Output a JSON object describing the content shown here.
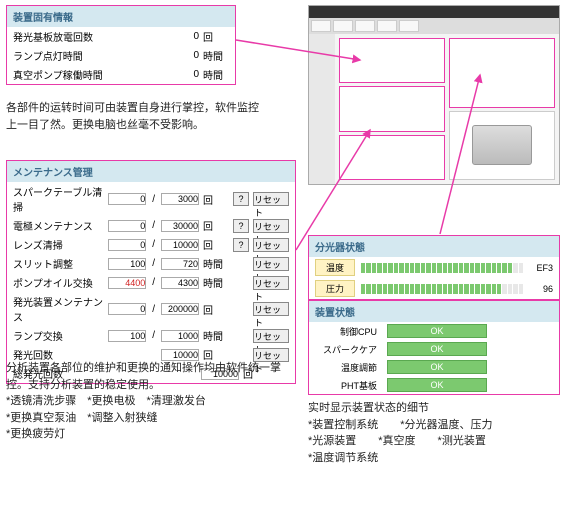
{
  "panel1": {
    "title": "装置固有情報",
    "rows": [
      {
        "label": "発光基板放電回数",
        "value": "0",
        "unit": "回"
      },
      {
        "label": "ランプ点灯時間",
        "value": "0",
        "unit": "時間"
      },
      {
        "label": "真空ポンプ稼働時間",
        "value": "0",
        "unit": "時間"
      }
    ]
  },
  "desc1": "各部件的运转时间可由装置自身进行掌控，软件监控上一目了然。更换电脑也丝毫不受影响。",
  "panel2": {
    "title": "メンテナンス管理",
    "rows": [
      {
        "label": "スパークテーブル清掃",
        "cur": "0",
        "lim": "3000",
        "unit": "回",
        "q": true,
        "reset": true
      },
      {
        "label": "電極メンテナンス",
        "cur": "0",
        "lim": "30000",
        "unit": "回",
        "q": true,
        "reset": true
      },
      {
        "label": "レンズ清掃",
        "cur": "0",
        "lim": "10000",
        "unit": "回",
        "q": true,
        "reset": true
      },
      {
        "label": "スリット調整",
        "cur": "100",
        "lim": "720",
        "unit": "時間",
        "q": false,
        "reset": true
      },
      {
        "label": "ポンプオイル交換",
        "cur": "4400",
        "lim": "4300",
        "unit": "時間",
        "q": false,
        "reset": true,
        "red": true
      },
      {
        "label": "発光装置メンテナンス",
        "cur": "0",
        "lim": "200000",
        "unit": "回",
        "q": false,
        "reset": true
      },
      {
        "label": "ランプ交換",
        "cur": "100",
        "lim": "1000",
        "unit": "時間",
        "q": false,
        "reset": true
      },
      {
        "label": "発光回数",
        "cur": "",
        "lim": "10000",
        "unit": "回",
        "q": false,
        "reset": true
      },
      {
        "label": "総発光回数",
        "cur": "",
        "lim": "10000",
        "unit": "回",
        "q": false,
        "reset": false
      }
    ],
    "reset_label": "リセット",
    "q_label": "?"
  },
  "desc2": {
    "lead": "分析装置各部位的维护和更换的通知操作均由软件统一掌控。支持分析装置的稳定使用。",
    "bullets": [
      "*透镜清洗步骤　*更换电极　*清理激发台",
      "*更换真空泵油　*调整入射狭缝",
      "*更换疲劳灯"
    ]
  },
  "panel3": {
    "title": "分光器状態",
    "rows": [
      {
        "label": "温度",
        "value": "EF3",
        "fill": 28,
        "total": 30
      },
      {
        "label": "圧力",
        "value": "96",
        "fill": 26,
        "total": 30
      }
    ]
  },
  "panel4": {
    "title": "装置状態",
    "rows": [
      {
        "label": "制御CPU",
        "status": "OK"
      },
      {
        "label": "スパークケア",
        "status": "OK"
      },
      {
        "label": "温度調節",
        "status": "OK"
      },
      {
        "label": "PHT基板",
        "status": "OK"
      }
    ]
  },
  "desc3": {
    "lead": "实时显示装置状态的细节",
    "bullets": [
      "*装置控制系统　　*分光器温度、压力",
      "*光源装置　　*真空度　　*测光装置",
      "*温度调节系统"
    ]
  }
}
